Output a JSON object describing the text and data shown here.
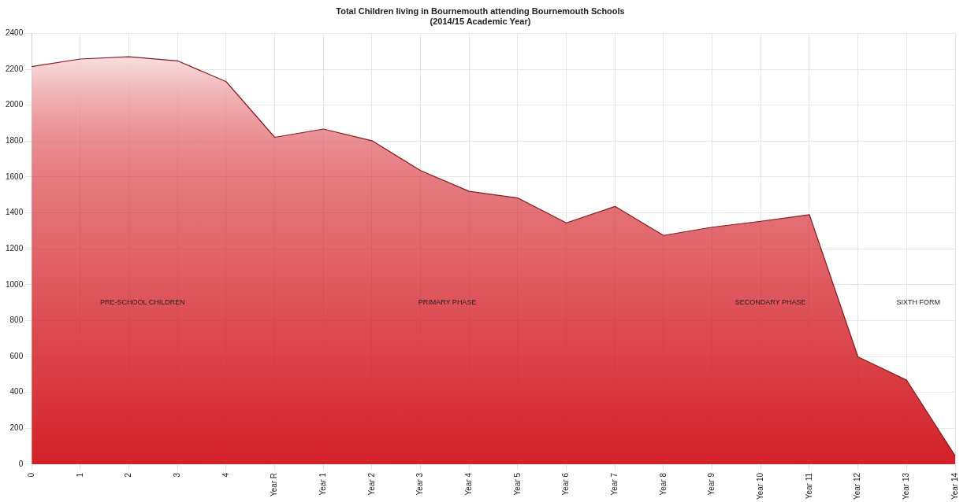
{
  "chart_data": {
    "type": "area",
    "title": "Total Children living in Bournemouth attending Bournemouth Schools",
    "subtitle": "(2014/15 Academic Year)",
    "categories": [
      "0",
      "1",
      "2",
      "3",
      "4",
      "Year R",
      "Year 1",
      "Year 2",
      "Year 3",
      "Year 4",
      "Year 5",
      "Year 6",
      "Year 7",
      "Year 8",
      "Year 9",
      "Year 10",
      "Year 11",
      "Year 12",
      "Year 13",
      "Year 14"
    ],
    "series": [
      {
        "color": "#d42027",
        "values": [
          2215,
          2257,
          2270,
          2247,
          2131,
          1821,
          1867,
          1802,
          1636,
          1520,
          1483,
          1344,
          1436,
          1274,
          1320,
          1353,
          1390,
          598,
          468,
          46
        ]
      }
    ],
    "ylim": [
      0,
      2400
    ],
    "yticks": [
      0,
      200,
      400,
      600,
      800,
      1000,
      1200,
      1400,
      1600,
      1800,
      2000,
      2200,
      2400
    ],
    "grid": true,
    "annotations": [
      "PRE-SCHOOL CHILDREN",
      "PRIMARY PHASE",
      "SECONDARY PHASE",
      "SIXTH FORM"
    ]
  }
}
